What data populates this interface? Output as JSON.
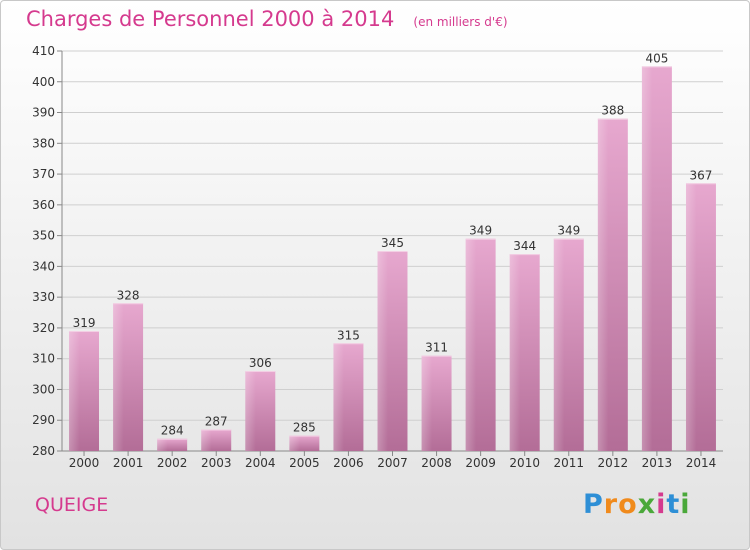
{
  "header": {
    "title": "Charges de Personnel 2000 à 2014",
    "subtitle": "(en milliers d'€)"
  },
  "footer": {
    "commune": "QUEIGE",
    "logo_letters": [
      "P",
      "r",
      "o",
      "x",
      "i",
      "t",
      "i"
    ],
    "logo_colors": [
      "#2e8fd6",
      "#f08a1c",
      "#f08a1c",
      "#4aa83a",
      "#d53a8e",
      "#2e8fd6",
      "#4aa83a"
    ]
  },
  "chart_data": {
    "type": "bar",
    "categories": [
      "2000",
      "2001",
      "2002",
      "2003",
      "2004",
      "2005",
      "2006",
      "2007",
      "2008",
      "2009",
      "2010",
      "2011",
      "2012",
      "2013",
      "2014"
    ],
    "values": [
      319,
      328,
      284,
      287,
      306,
      285,
      315,
      345,
      311,
      349,
      344,
      349,
      388,
      405,
      367
    ],
    "ylim": [
      280,
      410
    ],
    "yticks": [
      280,
      290,
      300,
      310,
      320,
      330,
      340,
      350,
      360,
      370,
      380,
      390,
      400,
      410
    ],
    "grid": true,
    "bar_color": "#d98bb9"
  }
}
